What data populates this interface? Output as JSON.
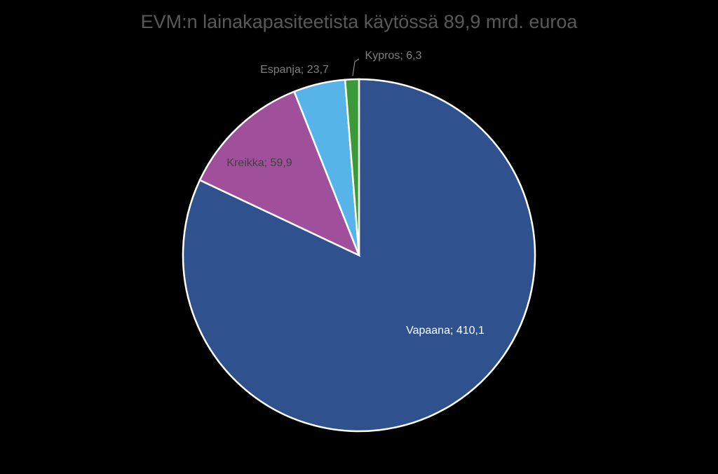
{
  "chart_data": {
    "type": "pie",
    "title": "EVM:n lainakapasiteetista käytössä 89,9 mrd. euroa",
    "values": [
      410.1,
      59.9,
      23.7,
      6.3
    ],
    "value_labels": [
      "Vapaana; 410,1",
      "Kreikka; 59,9",
      "Espanja; 23,7",
      "Kypros; 6,3"
    ],
    "colors": [
      "#2f528f",
      "#a0509a",
      "#56b4e9",
      "#3a9a3a"
    ]
  }
}
